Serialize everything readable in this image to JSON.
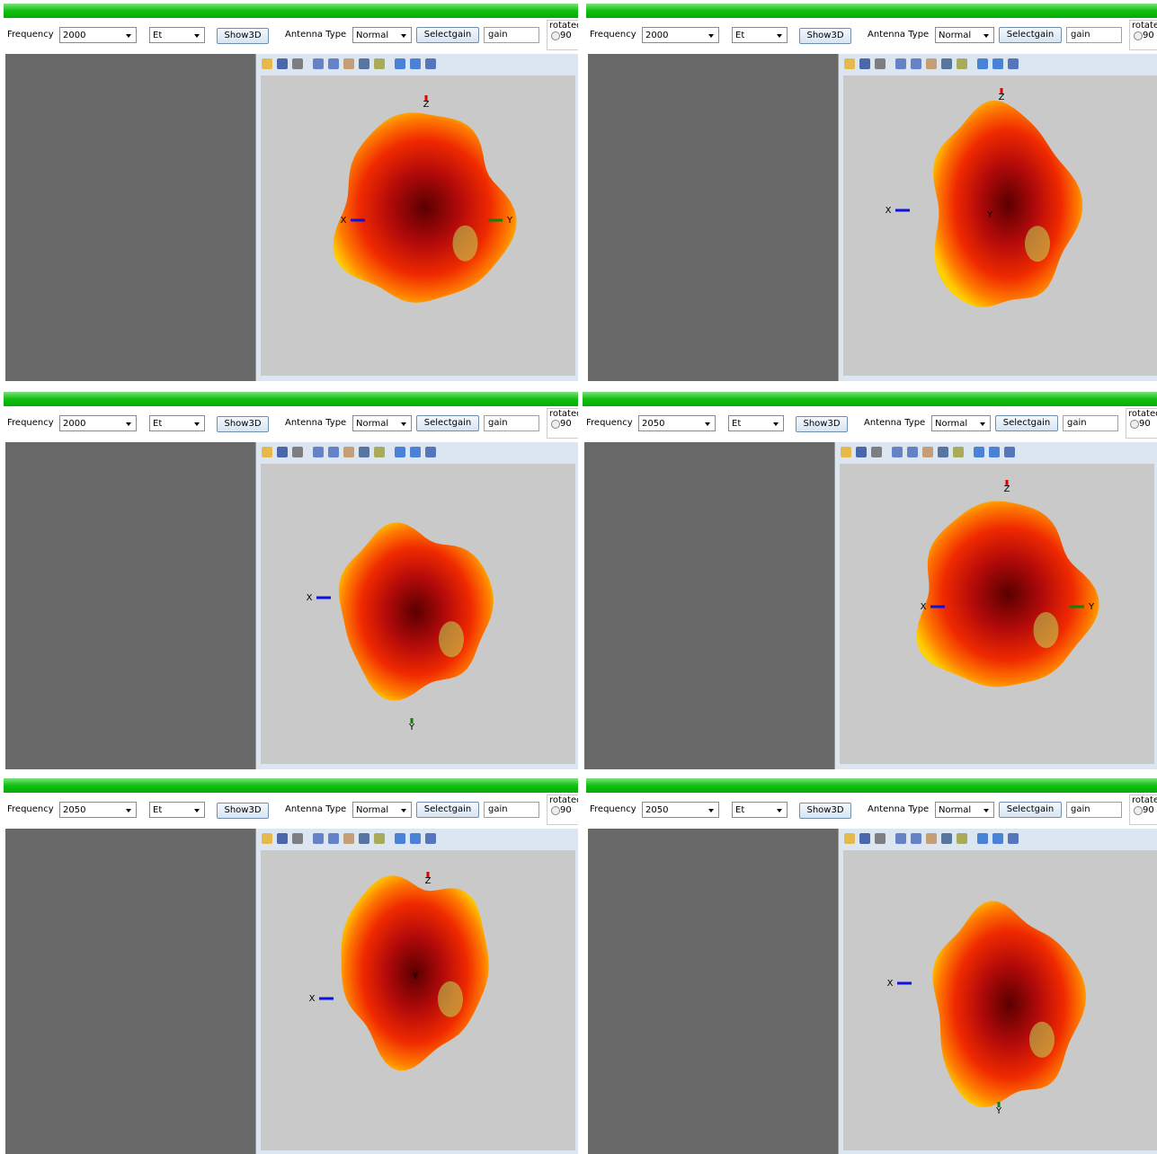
{
  "labels": {
    "frequency": "Frequency",
    "antenna_type": "Antenna Type",
    "show": "Show3D",
    "select": "Selectgain",
    "rotated": "rotated",
    "option": "90"
  },
  "panels": [
    {
      "frequency": "2000",
      "field": "Et",
      "antenna": "Normal",
      "gain": "gain",
      "axes": [
        "Z",
        "X",
        "Y"
      ]
    },
    {
      "frequency": "2000",
      "field": "Et",
      "antenna": "Normal",
      "gain": "gain",
      "axes": [
        "Z",
        "X",
        "Y"
      ]
    },
    {
      "frequency": "2000",
      "field": "Et",
      "antenna": "Normal",
      "gain": "gain",
      "axes": [
        "X",
        "Y"
      ]
    },
    {
      "frequency": "2050",
      "field": "Et",
      "antenna": "Normal",
      "gain": "gain",
      "axes": [
        "Z",
        "X",
        "Y"
      ]
    },
    {
      "frequency": "2050",
      "field": "Et",
      "antenna": "Normal",
      "gain": "gain",
      "axes": [
        "Z",
        "X",
        "Y"
      ]
    },
    {
      "frequency": "2050",
      "field": "Et",
      "antenna": "Normal",
      "gain": "gain",
      "axes": [
        "X",
        "Y"
      ]
    }
  ]
}
